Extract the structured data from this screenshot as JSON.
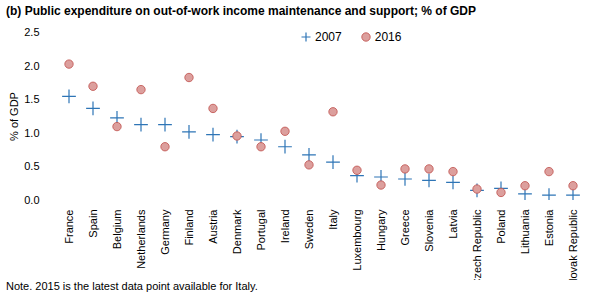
{
  "chart_data": {
    "type": "scatter",
    "title": "(b) Public expenditure on out-of-work income maintenance and support; % of GDP",
    "y_label": "% of GDP",
    "caption": "Note. 2015 is the latest data point available for Italy.",
    "categories": [
      "France",
      "Spain",
      "Belgium",
      "Netherlands",
      "Germany",
      "Finland",
      "Austria",
      "Denmark",
      "Portugal",
      "Ireland",
      "Sweden",
      "Italy",
      "Luxembourg",
      "Hungary",
      "Greece",
      "Slovenia",
      "Latvia",
      "Czech Republic",
      "Poland",
      "Lithuania",
      "Estonia",
      "Slovak Republic"
    ],
    "series": [
      {
        "name": "2007",
        "color": "#2e75b6",
        "marker": "plus",
        "values": [
          1.55,
          1.37,
          1.23,
          1.13,
          1.13,
          1.02,
          0.98,
          0.95,
          0.9,
          0.8,
          0.68,
          0.57,
          0.37,
          0.35,
          0.32,
          0.3,
          0.27,
          0.15,
          0.18,
          0.1,
          0.08,
          0.08
        ]
      },
      {
        "name": "2016",
        "color": "#c0504d",
        "marker": "circle",
        "values": [
          2.03,
          1.7,
          1.1,
          1.65,
          0.8,
          1.83,
          1.37,
          0.96,
          0.8,
          1.03,
          0.53,
          1.32,
          0.45,
          0.23,
          0.47,
          0.47,
          0.43,
          0.17,
          0.12,
          0.22,
          0.43,
          0.22
        ]
      }
    ],
    "ylim": [
      0,
      2.5
    ],
    "yticks": [
      0,
      0.5,
      1,
      1.5,
      2,
      2.5
    ],
    "grid": false,
    "legend": "top"
  }
}
